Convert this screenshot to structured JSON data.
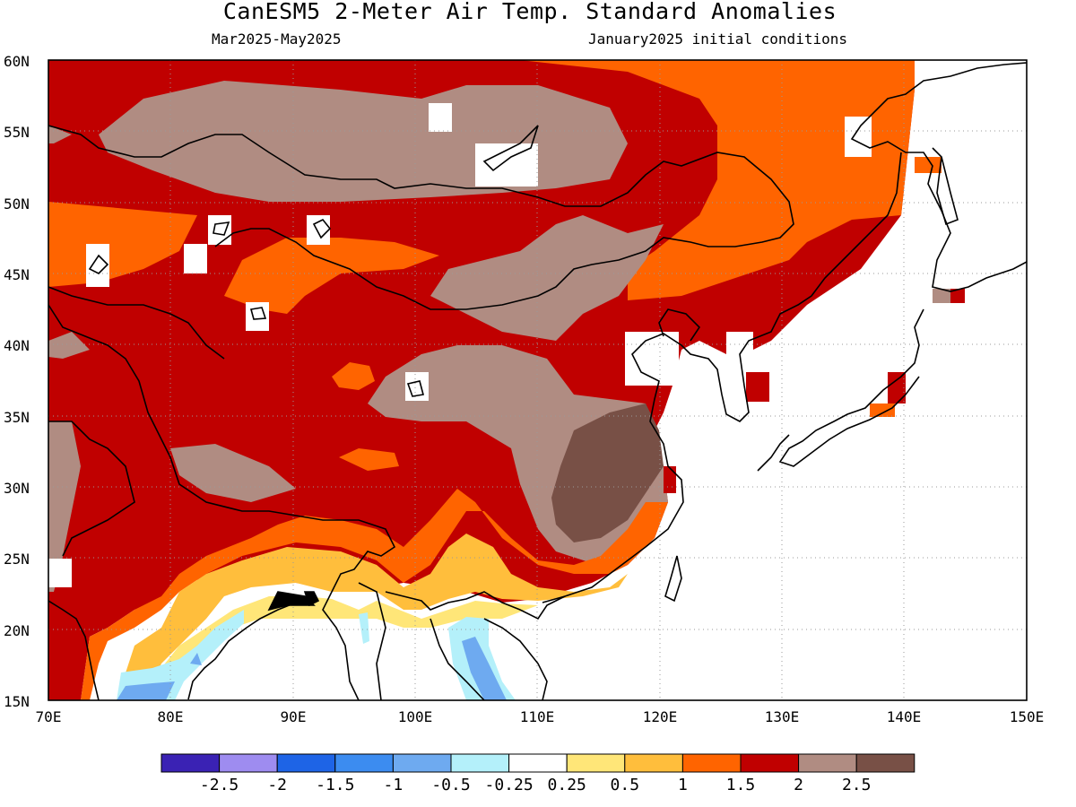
{
  "header": {
    "title": "CanESM5 2-Meter Air Temp. Standard Anomalies",
    "period": "Mar2025-May2025",
    "initial_conditions": "January2025 initial conditions"
  },
  "map": {
    "region": "East and South Asia",
    "lon_range": [
      70,
      150
    ],
    "lat_range": [
      15,
      60
    ],
    "lon_ticks": [
      "70E",
      "80E",
      "90E",
      "100E",
      "110E",
      "120E",
      "130E",
      "140E",
      "150E"
    ],
    "lat_ticks": [
      "60N",
      "55N",
      "50N",
      "45N",
      "40N",
      "35N",
      "30N",
      "25N",
      "20N",
      "15N"
    ]
  },
  "colorbar": {
    "labels": [
      "-2.5",
      "-2",
      "-1.5",
      "-1",
      "-0.5",
      "-0.25",
      "0.25",
      "0.5",
      "1",
      "1.5",
      "2",
      "2.5"
    ],
    "colors": [
      "#3a22b4",
      "#9e8cf0",
      "#1e64e6",
      "#3c8cf0",
      "#6eaaf0",
      "#b4f0fa",
      "#ffffff",
      "#ffe678",
      "#ffbe3c",
      "#ff6400",
      "#c00000",
      "#b08c82",
      "#785046"
    ]
  },
  "colors": {
    "c2": "#c00000",
    "c15": "#ff6400",
    "c1": "#ffbe3c",
    "c05": "#ffe678",
    "c25": "#b08c82",
    "c3": "#785046",
    "cn05": "#b4f0fa",
    "cn1": "#6eaaf0",
    "cn15": "#3c8cf0"
  }
}
